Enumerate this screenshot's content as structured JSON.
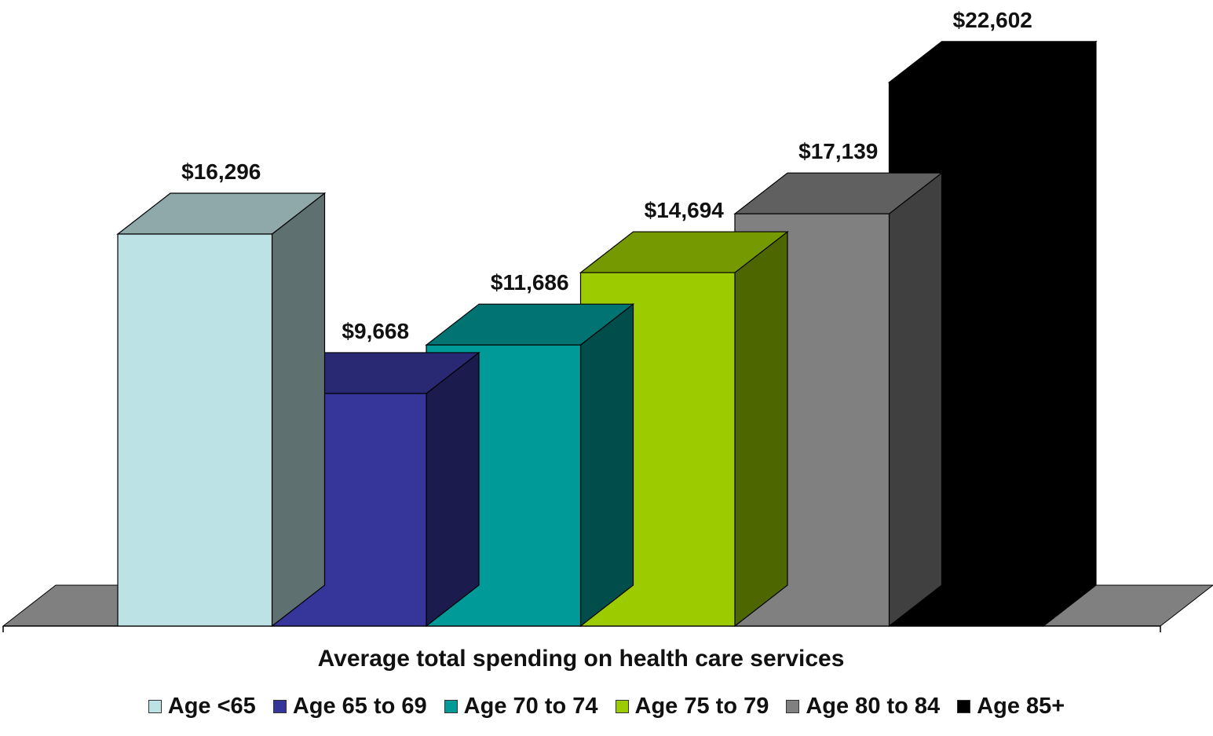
{
  "title_text": "",
  "chart_data": {
    "type": "bar",
    "variant": "3d",
    "xlabel": "Average total spending on health care services",
    "categories": [
      "Age <65",
      "Age 65 to 69",
      "Age 70 to 74",
      "Age 75 to 79",
      "Age 80 to 84",
      "Age 85+"
    ],
    "values": [
      16296,
      9668,
      11686,
      14694,
      17139,
      22602
    ],
    "value_labels": [
      "$16,296",
      "$9,668",
      "$11,686",
      "$14,694",
      "$17,139",
      "$22,602"
    ],
    "colors": {
      "front": [
        "#bde2e5",
        "#35359a",
        "#009a98",
        "#9ccc00",
        "#808080",
        "#000000"
      ],
      "top": [
        "#8fa8aa",
        "#282873",
        "#007372",
        "#759900",
        "#606060",
        "#000000"
      ],
      "side": [
        "#5f7071",
        "#1b1b4d",
        "#004d4c",
        "#4e6600",
        "#404040",
        "#000000"
      ]
    },
    "legend_position": "bottom",
    "grid": false
  },
  "legend": [
    {
      "label": "Age <65",
      "color": "#bde2e5"
    },
    {
      "label": "Age 65 to 69",
      "color": "#35359a"
    },
    {
      "label": "Age 70 to 74",
      "color": "#009a98"
    },
    {
      "label": "Age 75 to 79",
      "color": "#9ccc00"
    },
    {
      "label": "Age 80 to 84",
      "color": "#808080"
    },
    {
      "label": "Age 85+",
      "color": "#000000"
    }
  ]
}
